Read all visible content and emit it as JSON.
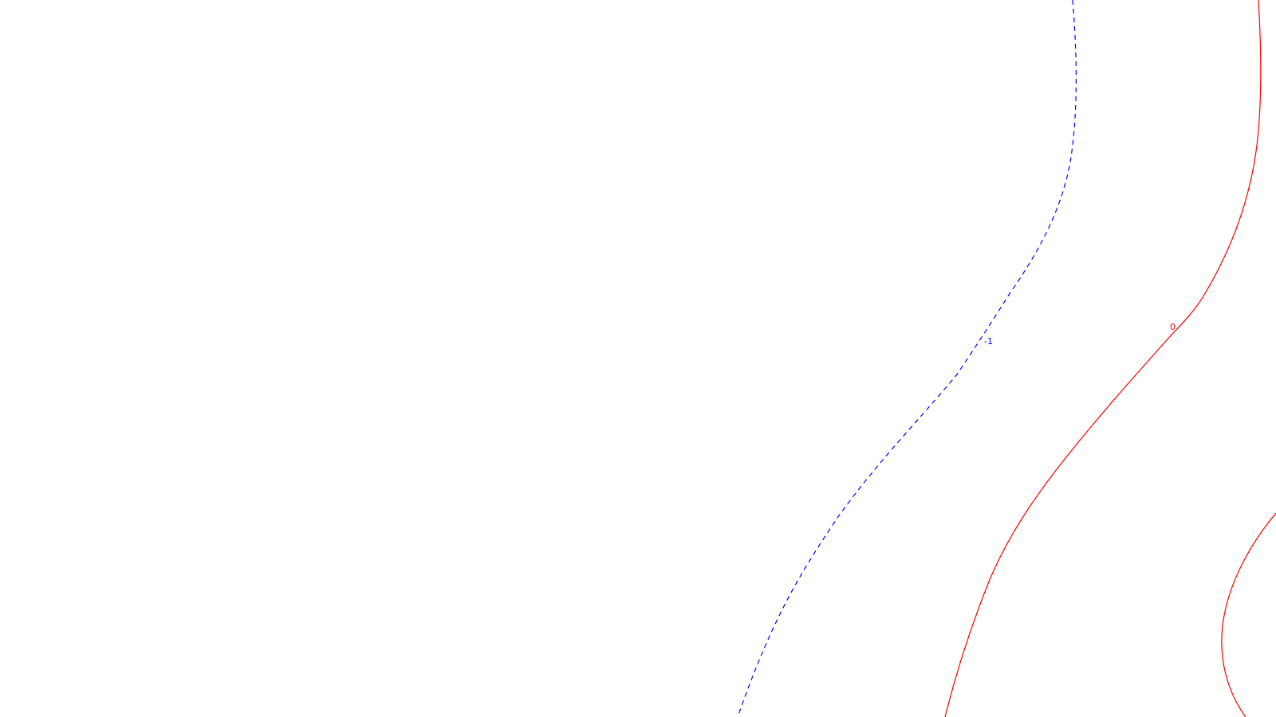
{
  "figure": {
    "background": "#ffffff",
    "contours": [
      {
        "id": "contour-neg1",
        "label": "-1",
        "color": "#0000ff",
        "line_style": "dashed"
      },
      {
        "id": "contour-zero",
        "label": "0",
        "color": "#ff0000",
        "line_style": "solid"
      }
    ]
  }
}
